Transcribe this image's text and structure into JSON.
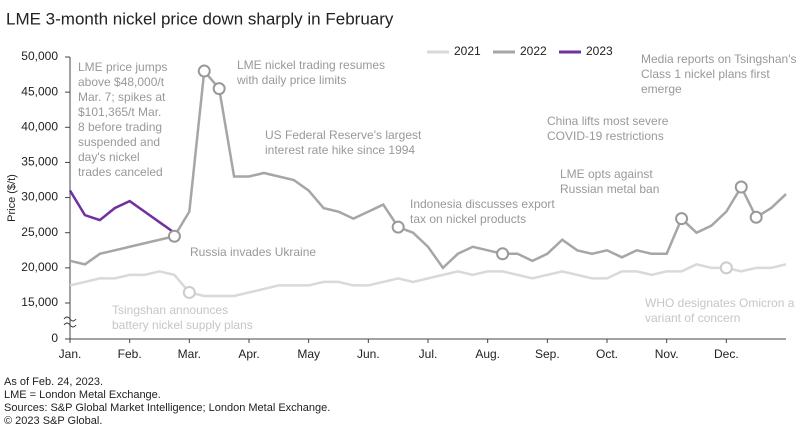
{
  "chart_data": {
    "type": "line",
    "title": "LME 3-month nickel price down sharply in February",
    "y_label": "Price ($/t)",
    "x": [
      0,
      0.25,
      0.5,
      0.75,
      1,
      1.25,
      1.5,
      1.75,
      2,
      2.25,
      2.5,
      2.75,
      3,
      3.25,
      3.5,
      3.75,
      4,
      4.25,
      4.5,
      4.75,
      5,
      5.25,
      5.5,
      5.75,
      6,
      6.25,
      6.5,
      6.75,
      7,
      7.25,
      7.5,
      7.75,
      8,
      8.25,
      8.5,
      8.75,
      9,
      9.25,
      9.5,
      9.75,
      10,
      10.25,
      10.5,
      10.75,
      11,
      11.25,
      11.5,
      11.75,
      12
    ],
    "xlim": [
      0,
      12
    ],
    "xticks": [
      {
        "value": 0,
        "label": "Jan."
      },
      {
        "value": 1,
        "label": "Feb."
      },
      {
        "value": 2,
        "label": "Mar."
      },
      {
        "value": 3,
        "label": "Apr."
      },
      {
        "value": 4,
        "label": "May"
      },
      {
        "value": 5,
        "label": "Jun."
      },
      {
        "value": 6,
        "label": "Jul."
      },
      {
        "value": 7,
        "label": "Aug."
      },
      {
        "value": 8,
        "label": "Sep."
      },
      {
        "value": 9,
        "label": "Oct."
      },
      {
        "value": 10,
        "label": "Nov."
      },
      {
        "value": 11,
        "label": "Dec."
      }
    ],
    "ylim": [
      0,
      50000
    ],
    "axis_break": [
      0,
      15000
    ],
    "yticks": [
      0,
      {
        "value": 15000,
        "label": "15,000"
      },
      {
        "value": 20000,
        "label": "20,000"
      },
      {
        "value": 25000,
        "label": "25,000"
      },
      {
        "value": 30000,
        "label": "30,000"
      },
      {
        "value": 35000,
        "label": "35,000"
      },
      {
        "value": 40000,
        "label": "40,000"
      },
      {
        "value": 45000,
        "label": "45,000"
      },
      {
        "value": 50000,
        "label": "50,000"
      }
    ],
    "series": [
      {
        "name": "2021",
        "color": "#d9d9d9",
        "values": [
          17500,
          18000,
          18500,
          18500,
          19000,
          19000,
          19500,
          19000,
          16500,
          16000,
          16000,
          16000,
          16500,
          17000,
          17500,
          17500,
          17500,
          18000,
          18000,
          17500,
          17500,
          18000,
          18500,
          18000,
          18500,
          19000,
          19500,
          19000,
          19500,
          19500,
          19000,
          18500,
          19000,
          19500,
          19000,
          18500,
          18500,
          19500,
          19500,
          19000,
          19500,
          19500,
          20500,
          20000,
          20000,
          19500,
          20000,
          20000,
          20500
        ]
      },
      {
        "name": "2022",
        "color": "#a6a6a6",
        "values": [
          21000,
          20500,
          22000,
          22500,
          23000,
          23500,
          24000,
          24500,
          28000,
          48000,
          45500,
          33000,
          33000,
          33500,
          33000,
          32500,
          31000,
          28500,
          28000,
          27000,
          28000,
          29000,
          25800,
          25000,
          23000,
          20000,
          22000,
          23000,
          22500,
          22000,
          22000,
          21000,
          22000,
          24000,
          22500,
          22000,
          22500,
          21500,
          22500,
          22000,
          22000,
          27000,
          25000,
          26000,
          28000,
          31500,
          27200,
          28500,
          30500
        ]
      },
      {
        "name": "2023",
        "color": "#7030a0",
        "values": [
          31000,
          27500,
          26800,
          28500,
          29500,
          28000,
          26500,
          25000,
          null,
          null,
          null,
          null,
          null,
          null,
          null,
          null,
          null,
          null,
          null,
          null,
          null,
          null,
          null,
          null,
          null,
          null,
          null,
          null,
          null,
          null,
          null,
          null,
          null,
          null,
          null,
          null,
          null,
          null,
          null,
          null,
          null,
          null,
          null,
          null,
          null,
          null,
          null,
          null,
          null
        ]
      }
    ],
    "annotations": [
      [
        "LME price jumps",
        "above $48,000/t",
        "Mar. 7; spikes at",
        "$101,365/t Mar.",
        "8 before trading",
        "suspended and",
        "day's nickel",
        "trades canceled"
      ],
      [
        "LME nickel trading resumes",
        "with daily price limits"
      ],
      [
        "US Federal Reserve's largest",
        "interest rate hike since 1994"
      ],
      [
        "Indonesia discusses export",
        "tax on nickel products"
      ],
      [
        "China lifts most severe",
        "COVID-19 restrictions"
      ],
      [
        "LME opts against",
        "Russian metal ban"
      ],
      [
        "Media reports on Tsingshan's",
        "Class 1 nickel plans first",
        "emerge"
      ],
      [
        "Russia invades Ukraine"
      ],
      [
        "Tsingshan announces",
        "battery nickel supply plans"
      ],
      [
        "WHO designates Omicron a",
        "variant of concern"
      ]
    ],
    "notes": [
      "As of Feb. 24, 2023.",
      "LME = London Metal Exchange.",
      "Sources: S&P Global Market Intelligence; London Metal Exchange.",
      "© 2023 S&P Global."
    ]
  }
}
